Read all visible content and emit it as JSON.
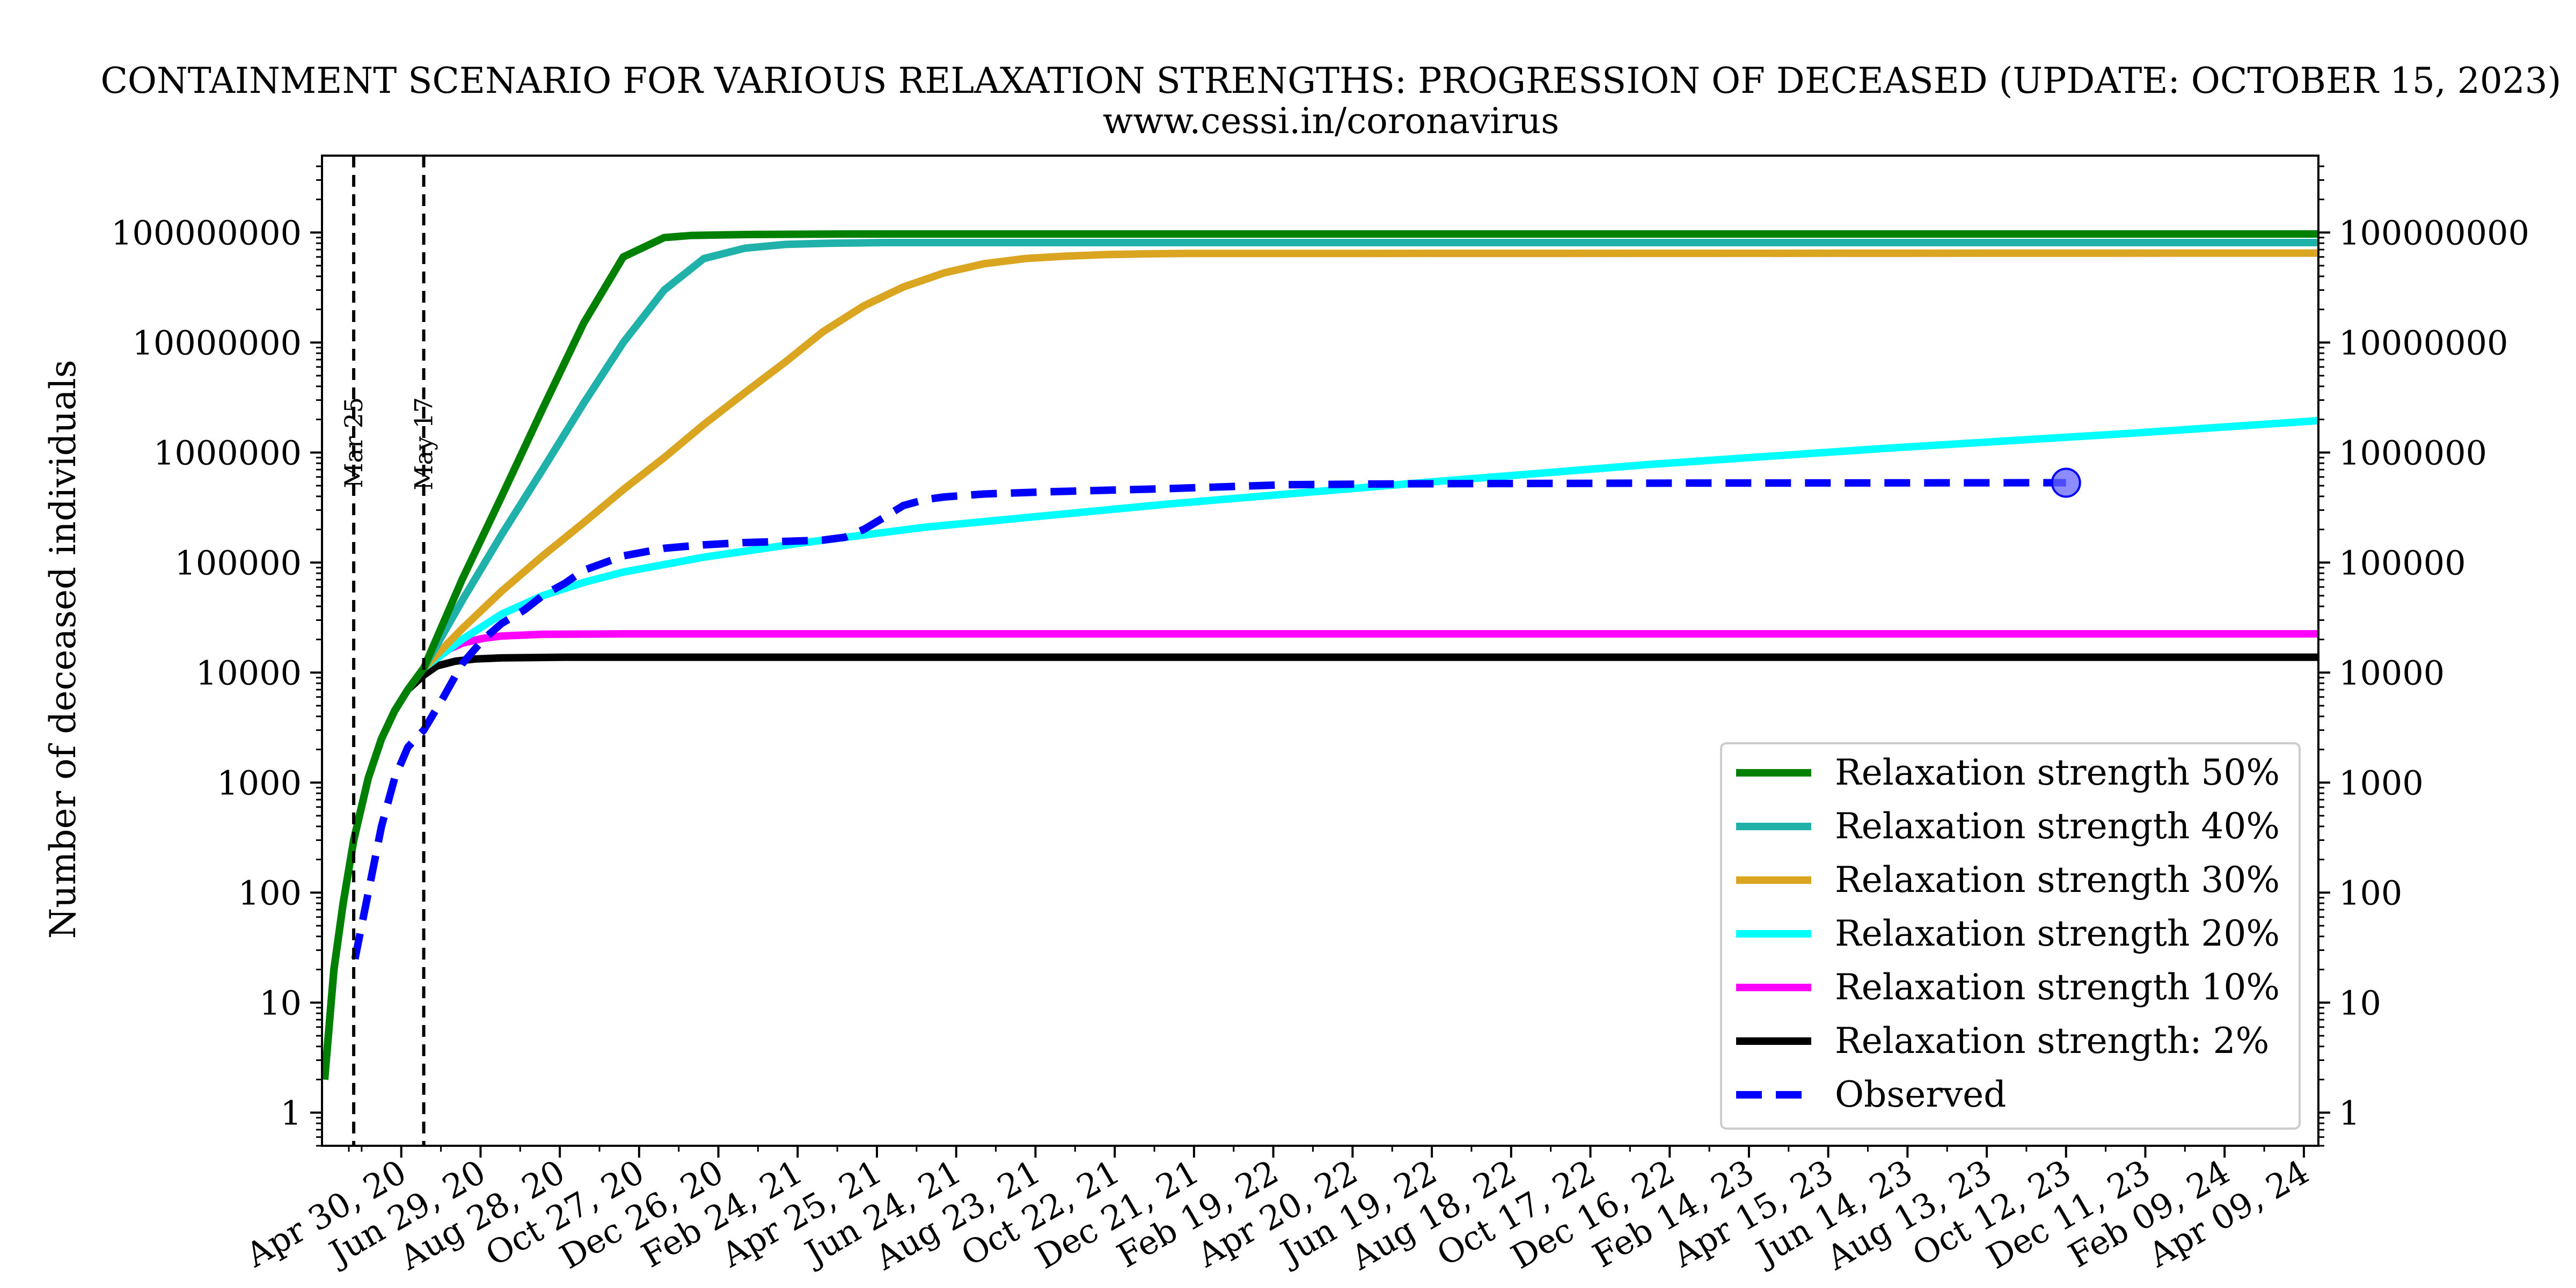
{
  "chart_data": {
    "type": "line",
    "title": "CONTAINMENT SCENARIO FOR VARIOUS RELAXATION STRENGTHS: PROGRESSION OF DECEASED (UPDATE: OCTOBER 15, 2023)",
    "subtitle": "www.cessi.in/coronavirus",
    "xlabel": "",
    "ylabel": "Number of deceased individuals",
    "yscale": "log",
    "ylim": [
      0.5,
      500000000
    ],
    "xlim": [
      "2020-03-01",
      "2024-04-20"
    ],
    "y_ticks": [
      "1",
      "10",
      "100",
      "1000",
      "10000",
      "100000",
      "1000000",
      "10000000",
      "100000000"
    ],
    "x_ticks": [
      "Apr 30, 20",
      "Jun 29, 20",
      "Aug 28, 20",
      "Oct 27, 20",
      "Dec 26, 20",
      "Feb 24, 21",
      "Apr 25, 21",
      "Jun 24, 21",
      "Aug 23, 21",
      "Oct 22, 21",
      "Dec 21, 21",
      "Feb 19, 22",
      "Apr 20, 22",
      "Jun 19, 22",
      "Aug 18, 22",
      "Oct 17, 22",
      "Dec 16, 22",
      "Feb 14, 23",
      "Apr 15, 23",
      "Jun 14, 23",
      "Aug 13, 23",
      "Oct 12, 23",
      "Dec 11, 23",
      "Feb 09, 24",
      "Apr 09, 24"
    ],
    "x_tick_dates": [
      "2020-04-30",
      "2020-06-29",
      "2020-08-28",
      "2020-10-27",
      "2020-12-26",
      "2021-02-24",
      "2021-04-25",
      "2021-06-24",
      "2021-08-23",
      "2021-10-22",
      "2021-12-21",
      "2022-02-19",
      "2022-04-20",
      "2022-06-19",
      "2022-08-18",
      "2022-10-17",
      "2022-12-16",
      "2023-02-14",
      "2023-04-15",
      "2023-06-14",
      "2023-08-13",
      "2023-10-12",
      "2023-12-11",
      "2024-02-09",
      "2024-04-09"
    ],
    "vertical_markers": [
      {
        "label": "Mar 25",
        "date": "2020-03-25"
      },
      {
        "label": "May 17",
        "date": "2020-05-17"
      }
    ],
    "legend_position": "lower right",
    "grid": false,
    "series": [
      {
        "name": "Relaxation strength 50%",
        "color": "#008000",
        "style": "solid",
        "x": [
          "2020-03-03",
          "2020-03-10",
          "2020-03-17",
          "2020-03-25",
          "2020-04-05",
          "2020-04-15",
          "2020-04-25",
          "2020-05-05",
          "2020-05-17",
          "2020-06-15",
          "2020-07-15",
          "2020-08-15",
          "2020-09-15",
          "2020-10-15",
          "2020-11-15",
          "2020-12-05",
          "2020-12-25",
          "2021-01-20",
          "2021-02-20",
          "2021-04-01",
          "2024-04-20"
        ],
        "y": [
          2,
          20,
          80,
          300,
          1100,
          2500,
          4500,
          7000,
          11000,
          70000,
          400000,
          2500000,
          15000000,
          60000000,
          90000000,
          94000000,
          95000000,
          96000000,
          96500000,
          97000000,
          97000000
        ]
      },
      {
        "name": "Relaxation strength 40%",
        "color": "#20b2aa",
        "style": "solid",
        "x": [
          "2020-03-03",
          "2020-03-10",
          "2020-03-17",
          "2020-03-25",
          "2020-04-05",
          "2020-04-15",
          "2020-04-25",
          "2020-05-05",
          "2020-05-17",
          "2020-06-15",
          "2020-07-15",
          "2020-08-15",
          "2020-09-15",
          "2020-10-15",
          "2020-11-15",
          "2020-12-15",
          "2021-01-15",
          "2021-02-15",
          "2021-03-20",
          "2021-05-01",
          "2024-04-20"
        ],
        "y": [
          2,
          20,
          80,
          300,
          1100,
          2500,
          4500,
          7000,
          11000,
          45000,
          180000,
          700000,
          2800000,
          10000000,
          30000000,
          58000000,
          72000000,
          78000000,
          80000000,
          81000000,
          81000000
        ]
      },
      {
        "name": "Relaxation strength 30%",
        "color": "#daa520",
        "style": "solid",
        "x": [
          "2020-03-03",
          "2020-03-10",
          "2020-03-17",
          "2020-03-25",
          "2020-04-05",
          "2020-04-15",
          "2020-04-25",
          "2020-05-05",
          "2020-05-17",
          "2020-06-15",
          "2020-07-15",
          "2020-08-15",
          "2020-09-15",
          "2020-10-15",
          "2020-11-15",
          "2020-12-15",
          "2021-01-15",
          "2021-02-15",
          "2021-03-15",
          "2021-04-15",
          "2021-05-15",
          "2021-06-15",
          "2021-07-15",
          "2021-08-15",
          "2021-09-15",
          "2021-10-15",
          "2021-11-15",
          "2021-12-15",
          "2024-04-20"
        ],
        "y": [
          2,
          20,
          80,
          300,
          1100,
          2500,
          4500,
          7000,
          11000,
          25000,
          55000,
          115000,
          230000,
          460000,
          900000,
          1800000,
          3500000,
          6700000,
          12500000,
          21500000,
          32000000,
          43000000,
          52000000,
          58000000,
          61000000,
          63000000,
          64000000,
          64500000,
          65000000
        ]
      },
      {
        "name": "Relaxation strength 20%",
        "color": "#00ffff",
        "style": "solid",
        "x": [
          "2020-03-03",
          "2020-03-10",
          "2020-03-17",
          "2020-03-25",
          "2020-04-05",
          "2020-04-15",
          "2020-04-25",
          "2020-05-05",
          "2020-05-17",
          "2020-06-15",
          "2020-07-15",
          "2020-08-15",
          "2020-09-15",
          "2020-10-15",
          "2020-12-15",
          "2021-03-01",
          "2021-06-01",
          "2021-12-01",
          "2022-06-01",
          "2022-12-01",
          "2023-06-01",
          "2023-12-01",
          "2024-04-20"
        ],
        "y": [
          2,
          20,
          80,
          300,
          1100,
          2500,
          4500,
          7000,
          11000,
          20000,
          34000,
          50000,
          66000,
          82000,
          112000,
          152000,
          210000,
          340000,
          520000,
          780000,
          1100000,
          1500000,
          1950000
        ]
      },
      {
        "name": "Relaxation strength 10%",
        "color": "#ff00ff",
        "style": "solid",
        "x": [
          "2020-03-03",
          "2020-03-10",
          "2020-03-17",
          "2020-03-25",
          "2020-04-05",
          "2020-04-15",
          "2020-04-25",
          "2020-05-05",
          "2020-05-17",
          "2020-06-01",
          "2020-06-15",
          "2020-07-01",
          "2020-07-15",
          "2020-08-15",
          "2020-10-15",
          "2024-04-20"
        ],
        "y": [
          2,
          20,
          80,
          300,
          1100,
          2500,
          4500,
          7000,
          11000,
          15500,
          18500,
          20500,
          21500,
          22300,
          22500,
          22500
        ]
      },
      {
        "name": "Relaxation strength: 2%",
        "color": "#000000",
        "style": "solid",
        "x": [
          "2020-03-03",
          "2020-03-10",
          "2020-03-17",
          "2020-03-25",
          "2020-04-05",
          "2020-04-15",
          "2020-04-25",
          "2020-05-05",
          "2020-05-17",
          "2020-05-27",
          "2020-06-10",
          "2020-06-25",
          "2020-07-15",
          "2020-09-01",
          "2024-04-20"
        ],
        "y": [
          2,
          20,
          80,
          300,
          1100,
          2500,
          4500,
          7000,
          9500,
          11500,
          12700,
          13300,
          13600,
          13800,
          13800
        ]
      },
      {
        "name": "Observed",
        "color": "#0000ff",
        "style": "dashed",
        "x": [
          "2020-03-26",
          "2020-04-05",
          "2020-04-15",
          "2020-04-25",
          "2020-05-05",
          "2020-05-17",
          "2020-06-01",
          "2020-06-15",
          "2020-07-01",
          "2020-07-15",
          "2020-08-01",
          "2020-08-15",
          "2020-09-01",
          "2020-09-15",
          "2020-10-15",
          "2020-11-15",
          "2020-12-15",
          "2021-01-15",
          "2021-02-15",
          "2021-03-15",
          "2021-04-01",
          "2021-04-15",
          "2021-05-01",
          "2021-05-15",
          "2021-06-01",
          "2021-06-15",
          "2021-07-15",
          "2021-09-01",
          "2021-12-01",
          "2022-03-01",
          "2022-06-01",
          "2023-01-01",
          "2023-10-12"
        ],
        "y": [
          25,
          100,
          400,
          1100,
          2100,
          3000,
          6000,
          12000,
          20000,
          28000,
          37000,
          50000,
          65000,
          85000,
          115000,
          135000,
          145000,
          152000,
          156000,
          160000,
          170000,
          200000,
          260000,
          330000,
          375000,
          395000,
          420000,
          440000,
          470000,
          510000,
          520000,
          528000,
          532000
        ]
      }
    ],
    "end_marker": {
      "date": "2023-10-12",
      "value": 532000,
      "color": "#6666ff"
    }
  }
}
